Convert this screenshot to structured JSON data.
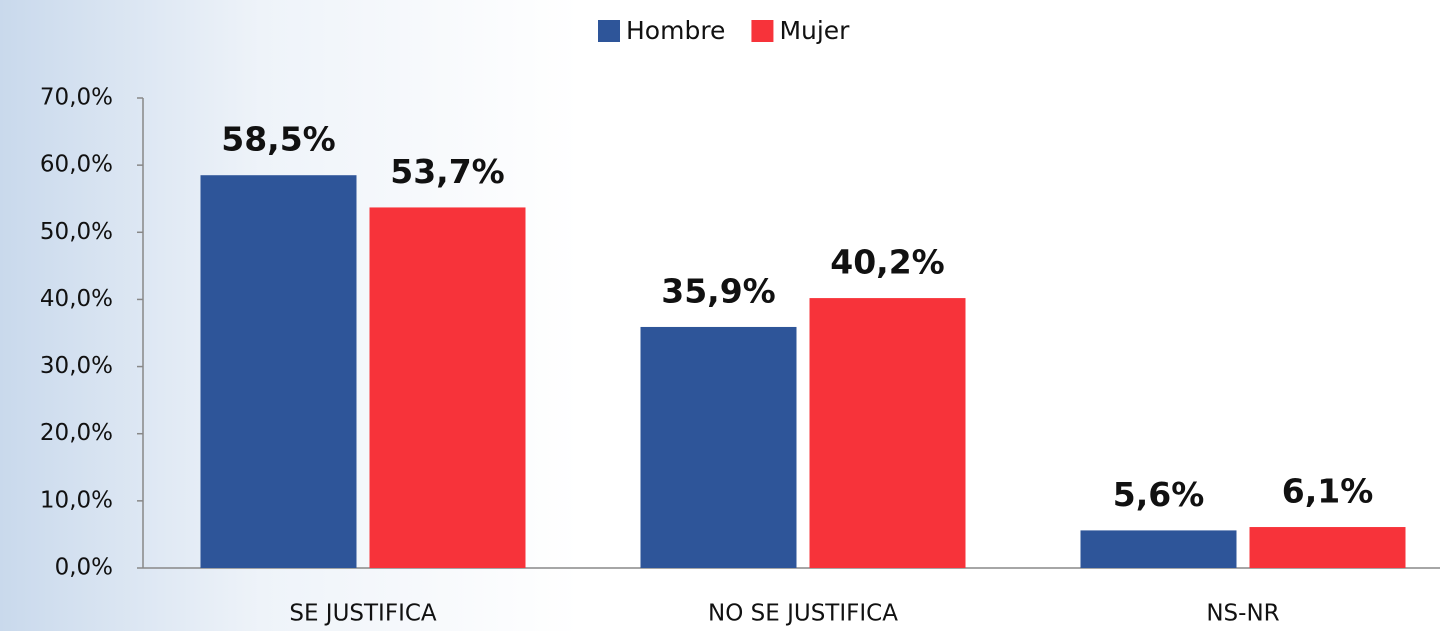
{
  "chart_data": {
    "type": "bar",
    "categories": [
      "SE JUSTIFICA",
      "NO SE JUSTIFICA",
      "NS-NR"
    ],
    "series": [
      {
        "name": "Hombre",
        "color": "#2e5599",
        "values": [
          58.5,
          35.9,
          5.6
        ],
        "value_labels": [
          "58,5%",
          "35,9%",
          "5,6%"
        ]
      },
      {
        "name": "Mujer",
        "color": "#f7333a",
        "values": [
          53.7,
          40.2,
          6.1
        ],
        "value_labels": [
          "53,7%",
          "40,2%",
          "6,1%"
        ]
      }
    ],
    "ylim": [
      0,
      70
    ],
    "yticks": [
      {
        "value": 0,
        "label": "0,0%"
      },
      {
        "value": 10,
        "label": "10,0%"
      },
      {
        "value": 20,
        "label": "20,0%"
      },
      {
        "value": 30,
        "label": "30,0%"
      },
      {
        "value": 40,
        "label": "40,0%"
      },
      {
        "value": 50,
        "label": "50,0%"
      },
      {
        "value": 60,
        "label": "60,0%"
      },
      {
        "value": 70,
        "label": "70,0%"
      }
    ],
    "legend": "top"
  }
}
